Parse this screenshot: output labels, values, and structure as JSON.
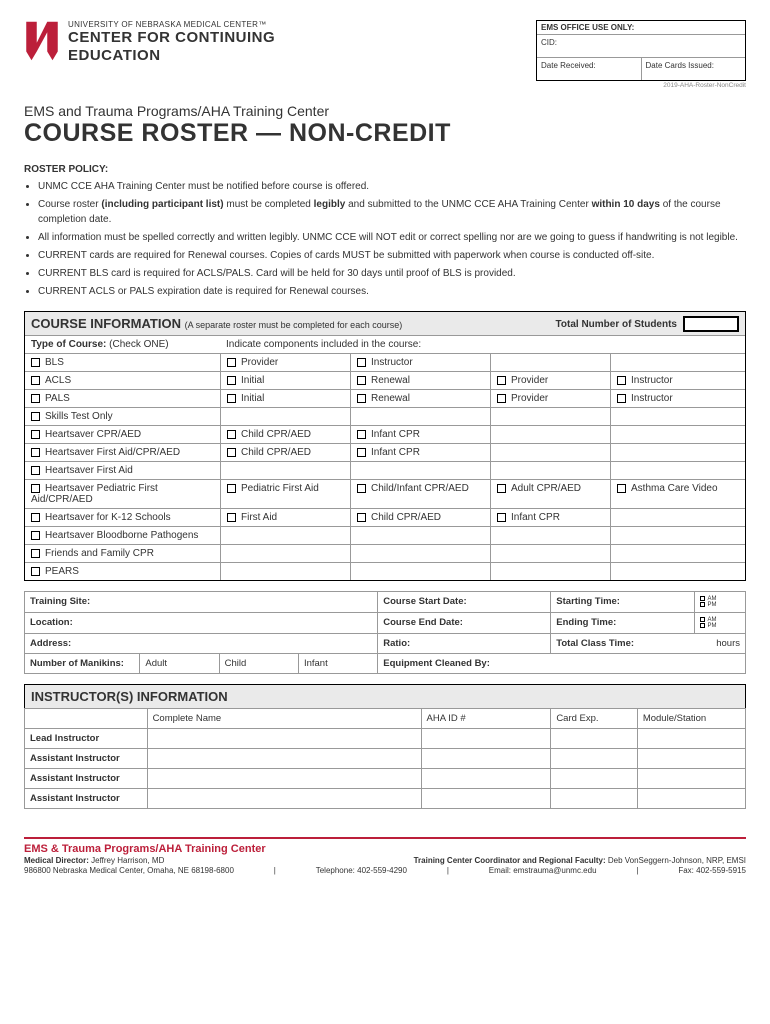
{
  "header": {
    "org_small": "UNIVERSITY OF NEBRASKA MEDICAL CENTER™",
    "org_main1": "CENTER FOR CONTINUING",
    "org_main2": "EDUCATION",
    "office_title": "EMS OFFICE USE ONLY:",
    "cid": "CID:",
    "date_received": "Date Received:",
    "date_cards": "Date Cards Issued:",
    "doc_id": "2019-AHA-Roster-NonCredit"
  },
  "title": {
    "subtitle": "EMS and Trauma Programs/AHA Training Center",
    "main": "COURSE ROSTER — NON-CREDIT"
  },
  "policy": {
    "hdr": "ROSTER POLICY:",
    "items": [
      "UNMC CCE AHA Training Center must be notified before course is offered.",
      "Course roster <b>(including participant list)</b> must be completed <b>legibly</b> and submitted to the UNMC CCE AHA Training Center <b>within 10 days</b> of the course completion date.",
      "All information must be spelled correctly and written legibly.  UNMC CCE will NOT edit or correct spelling nor are we going to guess if handwriting is not legible.",
      "CURRENT cards are required for Renewal courses.  Copies of cards MUST be submitted with paperwork when course is conducted off-site.",
      "CURRENT BLS card is required for ACLS/PALS.  Card will be held for 30 days until proof of BLS is provided.",
      "CURRENT ACLS or PALS expiration date is required for Renewal courses."
    ]
  },
  "course": {
    "hdr": "COURSE INFORMATION",
    "hdr_note": "(A separate roster must be completed for each course)",
    "total_label": "Total Number of Students",
    "type_label": "Type of Course:",
    "type_note": "(Check ONE)",
    "components_label": "Indicate components included in the course:",
    "rows": [
      {
        "c1": "BLS",
        "c2": "Provider",
        "c3": "Instructor",
        "c4": "",
        "c5": ""
      },
      {
        "c1": "ACLS",
        "c2": "Initial",
        "c3": "Renewal",
        "c4": "Provider",
        "c5": "Instructor"
      },
      {
        "c1": "PALS",
        "c2": "Initial",
        "c3": "Renewal",
        "c4": "Provider",
        "c5": "Instructor"
      },
      {
        "c1": "Skills Test Only",
        "c2": "",
        "c3": "",
        "c4": "",
        "c5": ""
      },
      {
        "c1": "Heartsaver CPR/AED",
        "c2": "Child CPR/AED",
        "c3": "Infant CPR",
        "c4": "",
        "c5": ""
      },
      {
        "c1": "Heartsaver First Aid/CPR/AED",
        "c2": "Child CPR/AED",
        "c3": "Infant CPR",
        "c4": "",
        "c5": ""
      },
      {
        "c1": "Heartsaver First Aid",
        "c2": "",
        "c3": "",
        "c4": "",
        "c5": ""
      },
      {
        "c1": "Heartsaver Pediatric First Aid/CPR/AED",
        "c2": "Pediatric First Aid",
        "c3": "Child/Infant CPR/AED",
        "c4": "Adult CPR/AED",
        "c5": "Asthma Care Video"
      },
      {
        "c1": "Heartsaver for K-12 Schools",
        "c2": "First Aid",
        "c3": "Child CPR/AED",
        "c4": "Infant CPR",
        "c5": ""
      },
      {
        "c1": "Heartsaver Bloodborne Pathogens",
        "c2": "",
        "c3": "",
        "c4": "",
        "c5": ""
      },
      {
        "c1": "Friends and Family CPR",
        "c2": "",
        "c3": "",
        "c4": "",
        "c5": ""
      },
      {
        "c1": "PEARS",
        "c2": "",
        "c3": "",
        "c4": "",
        "c5": ""
      }
    ]
  },
  "details": {
    "training_site": "Training Site:",
    "course_start": "Course Start Date:",
    "starting_time": "Starting Time:",
    "location": "Location:",
    "course_end": "Course End Date:",
    "ending_time": "Ending Time:",
    "address": "Address:",
    "ratio": "Ratio:",
    "total_class": "Total Class Time:",
    "hours": "hours",
    "manikins": "Number of Manikins:",
    "adult": "Adult",
    "child": "Child",
    "infant": "Infant",
    "equipment": "Equipment Cleaned By:",
    "am": "AM",
    "pm": "PM"
  },
  "instructors": {
    "hdr": "INSTRUCTOR(S) INFORMATION",
    "cols": [
      "",
      "Complete Name",
      "AHA ID #",
      "Card Exp.",
      "Module/Station"
    ],
    "rows": [
      "Lead Instructor",
      "Assistant Instructor",
      "Assistant Instructor",
      "Assistant Instructor"
    ]
  },
  "footer": {
    "title": "EMS & Trauma Programs/AHA Training Center",
    "md_label": "Medical Director:",
    "md": "Jeffrey Harrison, MD",
    "coord_label": "Training Center Coordinator and Regional Faculty:",
    "coord": "Deb VonSeggern-Johnson, NRP, EMSI",
    "addr": "986800 Nebraska Medical Center, Omaha, NE 68198-6800",
    "tel_label": "Telephone:",
    "tel": "402-559-4290",
    "email_label": "Email:",
    "email": "emstrauma@unmc.edu",
    "fax_label": "Fax:",
    "fax": "402-559-5915"
  },
  "colors": {
    "brand": "#bc1f3a",
    "border": "#000",
    "light_border": "#999",
    "section_bg": "#eaeaea"
  }
}
